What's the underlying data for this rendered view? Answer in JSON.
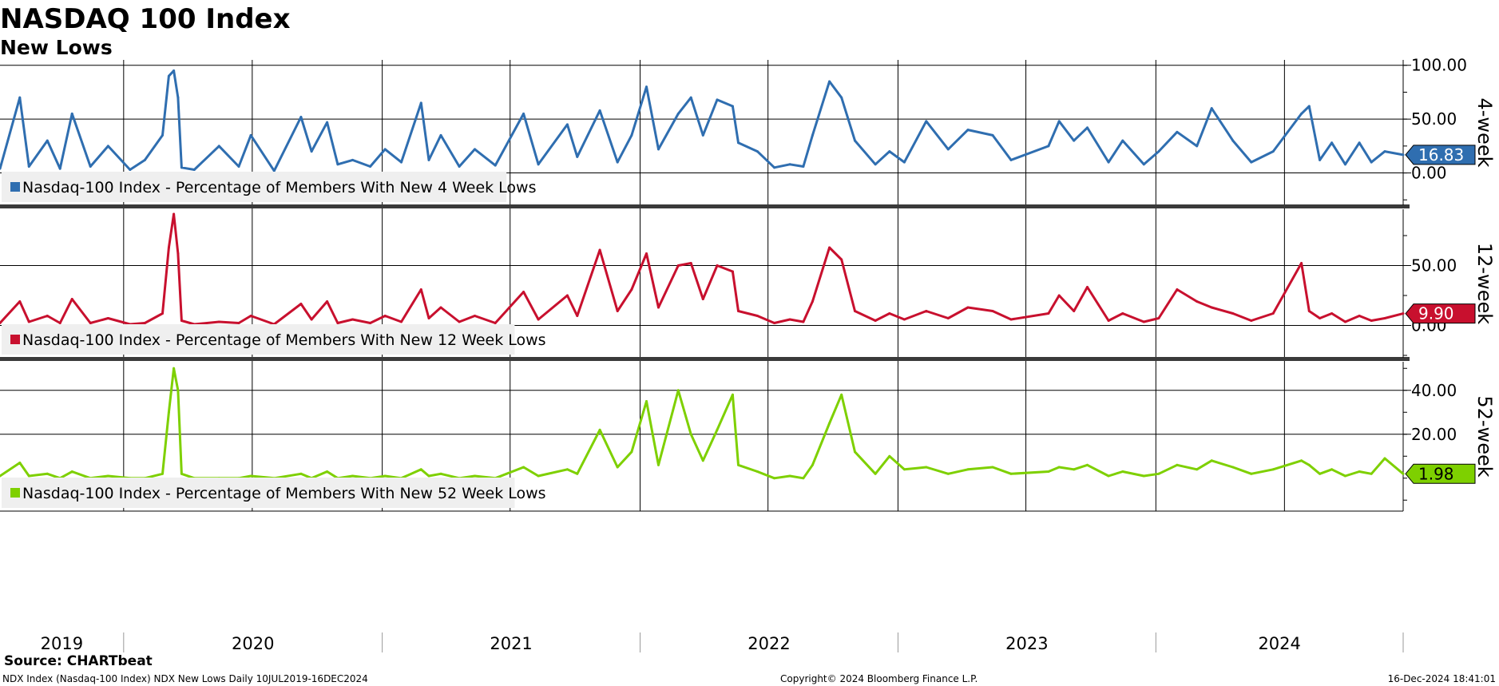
{
  "title": "NASDAQ 100 Index",
  "subtitle": "New Lows",
  "source": "Source: CHARTbeat",
  "footer": {
    "left": "NDX Index (Nasdaq-100 Index) NDX New Lows  Daily 10JUL2019-16DEC2024",
    "center": "Copyright© 2024 Bloomberg Finance L.P.",
    "right": "16-Dec-2024 18:41:01"
  },
  "colors": {
    "blue": "#2f6eb0",
    "red": "#c8102e",
    "green": "#7ed000",
    "grid": "#000000"
  },
  "chart_data": {
    "type": "line",
    "x_axis": {
      "labels": [
        "2019",
        "2020",
        "2021",
        "2022",
        "2023",
        "2024"
      ],
      "range": [
        "2019-07-10",
        "2024-12-16"
      ],
      "grid": true
    },
    "panels": [
      {
        "axis_title": "4-week",
        "y_ticks": [
          "100.00",
          "50.00",
          "0.00"
        ],
        "y_range": [
          -30,
          105
        ],
        "last_value": "16.83",
        "color": "blue",
        "legend": "Nasdaq-100 Index - Percentage of Members With New 4 Week Lows",
        "series": {
          "name": "Nasdaq-100 Index - Percentage of Members With New 4 Week Lows",
          "x": [
            "2019-07-10",
            "2019-08-07",
            "2019-08-20",
            "2019-09-15",
            "2019-10-03",
            "2019-10-20",
            "2019-11-15",
            "2019-12-10",
            "2020-01-10",
            "2020-01-31",
            "2020-02-25",
            "2020-03-05",
            "2020-03-12",
            "2020-03-18",
            "2020-03-23",
            "2020-04-10",
            "2020-05-15",
            "2020-06-12",
            "2020-06-29",
            "2020-08-01",
            "2020-09-08",
            "2020-09-23",
            "2020-10-15",
            "2020-10-30",
            "2020-11-20",
            "2020-12-15",
            "2021-01-05",
            "2021-01-28",
            "2021-02-25",
            "2021-03-08",
            "2021-03-25",
            "2021-04-20",
            "2021-05-12",
            "2021-06-10",
            "2021-07-20",
            "2021-08-10",
            "2021-09-20",
            "2021-10-04",
            "2021-11-05",
            "2021-11-30",
            "2021-12-20",
            "2022-01-10",
            "2022-01-27",
            "2022-02-24",
            "2022-03-14",
            "2022-03-31",
            "2022-04-20",
            "2022-05-12",
            "2022-05-20",
            "2022-06-16",
            "2022-07-10",
            "2022-08-01",
            "2022-08-20",
            "2022-09-02",
            "2022-09-26",
            "2022-10-13",
            "2022-11-01",
            "2022-11-30",
            "2022-12-20",
            "2023-01-10",
            "2023-02-10",
            "2023-03-13",
            "2023-04-10",
            "2023-05-15",
            "2023-06-10",
            "2023-08-02",
            "2023-08-17",
            "2023-09-07",
            "2023-09-26",
            "2023-10-26",
            "2023-11-15",
            "2023-12-15",
            "2024-01-05",
            "2024-01-31",
            "2024-02-28",
            "2024-03-20",
            "2024-04-19",
            "2024-05-15",
            "2024-06-15",
            "2024-07-25",
            "2024-08-05",
            "2024-08-20",
            "2024-09-06",
            "2024-09-25",
            "2024-10-15",
            "2024-11-01",
            "2024-11-20",
            "2024-12-16"
          ],
          "y": [
            4,
            70,
            6,
            30,
            4,
            55,
            6,
            25,
            3,
            12,
            35,
            90,
            95,
            70,
            5,
            3,
            25,
            6,
            35,
            2,
            52,
            20,
            47,
            8,
            12,
            6,
            22,
            10,
            65,
            12,
            35,
            6,
            22,
            7,
            55,
            8,
            45,
            15,
            58,
            10,
            35,
            80,
            22,
            55,
            70,
            35,
            68,
            62,
            28,
            20,
            5,
            8,
            6,
            35,
            85,
            70,
            30,
            8,
            20,
            10,
            48,
            22,
            40,
            35,
            12,
            25,
            48,
            30,
            42,
            10,
            30,
            8,
            20,
            38,
            25,
            60,
            30,
            10,
            20,
            55,
            62,
            12,
            28,
            8,
            28,
            10,
            20,
            16.83
          ]
        }
      },
      {
        "axis_title": "12-week",
        "y_ticks": [
          "50.00",
          "0.00"
        ],
        "y_range": [
          -27,
          97
        ],
        "last_value": "9.90",
        "color": "red",
        "legend": "Nasdaq-100 Index - Percentage of Members With New 12 Week Lows",
        "series": {
          "name": "Nasdaq-100 Index - Percentage of Members With New 12 Week Lows",
          "x": [
            "2019-07-10",
            "2019-08-07",
            "2019-08-20",
            "2019-09-15",
            "2019-10-03",
            "2019-10-20",
            "2019-11-15",
            "2019-12-10",
            "2020-01-10",
            "2020-01-31",
            "2020-02-25",
            "2020-03-05",
            "2020-03-12",
            "2020-03-18",
            "2020-03-23",
            "2020-04-10",
            "2020-05-15",
            "2020-06-12",
            "2020-06-29",
            "2020-08-01",
            "2020-09-08",
            "2020-09-23",
            "2020-10-15",
            "2020-10-30",
            "2020-11-20",
            "2020-12-15",
            "2021-01-05",
            "2021-01-28",
            "2021-02-25",
            "2021-03-08",
            "2021-03-25",
            "2021-04-20",
            "2021-05-12",
            "2021-06-10",
            "2021-07-20",
            "2021-08-10",
            "2021-09-20",
            "2021-10-04",
            "2021-11-05",
            "2021-11-30",
            "2021-12-20",
            "2022-01-10",
            "2022-01-27",
            "2022-02-24",
            "2022-03-14",
            "2022-03-31",
            "2022-04-20",
            "2022-05-12",
            "2022-05-20",
            "2022-06-16",
            "2022-07-10",
            "2022-08-01",
            "2022-08-20",
            "2022-09-02",
            "2022-09-26",
            "2022-10-13",
            "2022-11-01",
            "2022-11-30",
            "2022-12-20",
            "2023-01-10",
            "2023-02-10",
            "2023-03-13",
            "2023-04-10",
            "2023-05-15",
            "2023-06-10",
            "2023-08-02",
            "2023-08-17",
            "2023-09-07",
            "2023-09-26",
            "2023-10-26",
            "2023-11-15",
            "2023-12-15",
            "2024-01-05",
            "2024-01-31",
            "2024-02-28",
            "2024-03-20",
            "2024-04-19",
            "2024-05-15",
            "2024-06-15",
            "2024-07-25",
            "2024-08-05",
            "2024-08-20",
            "2024-09-06",
            "2024-09-25",
            "2024-10-15",
            "2024-11-01",
            "2024-11-20",
            "2024-12-16"
          ],
          "y": [
            2,
            20,
            3,
            8,
            2,
            22,
            2,
            6,
            1,
            2,
            10,
            65,
            93,
            60,
            4,
            1,
            3,
            2,
            8,
            1,
            18,
            5,
            20,
            2,
            5,
            2,
            8,
            3,
            30,
            6,
            15,
            3,
            8,
            2,
            28,
            5,
            25,
            8,
            63,
            12,
            30,
            60,
            15,
            50,
            52,
            22,
            50,
            45,
            12,
            8,
            2,
            5,
            3,
            20,
            65,
            55,
            12,
            4,
            10,
            5,
            12,
            6,
            15,
            12,
            5,
            10,
            25,
            12,
            32,
            4,
            10,
            3,
            6,
            30,
            20,
            15,
            10,
            4,
            10,
            52,
            12,
            6,
            10,
            3,
            8,
            4,
            6,
            9.9
          ]
        }
      },
      {
        "axis_title": "52-week",
        "y_ticks": [
          "40.00",
          "20.00"
        ],
        "y_range": [
          -15,
          53
        ],
        "last_value": "1.98",
        "color": "green",
        "legend": "Nasdaq-100 Index - Percentage of Members With New 52 Week Lows",
        "series": {
          "name": "Nasdaq-100 Index - Percentage of Members With New 52 Week Lows",
          "x": [
            "2019-07-10",
            "2019-08-07",
            "2019-08-20",
            "2019-09-15",
            "2019-10-03",
            "2019-10-20",
            "2019-11-15",
            "2019-12-10",
            "2020-01-10",
            "2020-01-31",
            "2020-02-25",
            "2020-03-05",
            "2020-03-12",
            "2020-03-18",
            "2020-03-23",
            "2020-04-10",
            "2020-05-15",
            "2020-06-12",
            "2020-06-29",
            "2020-08-01",
            "2020-09-08",
            "2020-09-23",
            "2020-10-15",
            "2020-10-30",
            "2020-11-20",
            "2020-12-15",
            "2021-01-05",
            "2021-01-28",
            "2021-02-25",
            "2021-03-08",
            "2021-03-25",
            "2021-04-20",
            "2021-05-12",
            "2021-06-10",
            "2021-07-20",
            "2021-08-10",
            "2021-09-20",
            "2021-10-04",
            "2021-11-05",
            "2021-11-30",
            "2021-12-20",
            "2022-01-10",
            "2022-01-27",
            "2022-02-24",
            "2022-03-14",
            "2022-03-31",
            "2022-04-20",
            "2022-05-12",
            "2022-05-20",
            "2022-06-16",
            "2022-07-10",
            "2022-08-01",
            "2022-08-20",
            "2022-09-02",
            "2022-09-26",
            "2022-10-13",
            "2022-11-01",
            "2022-11-30",
            "2022-12-20",
            "2023-01-10",
            "2023-02-10",
            "2023-03-13",
            "2023-04-10",
            "2023-05-15",
            "2023-06-10",
            "2023-08-02",
            "2023-08-17",
            "2023-09-07",
            "2023-09-26",
            "2023-10-26",
            "2023-11-15",
            "2023-12-15",
            "2024-01-05",
            "2024-01-31",
            "2024-02-28",
            "2024-03-20",
            "2024-04-19",
            "2024-05-15",
            "2024-06-15",
            "2024-07-25",
            "2024-08-05",
            "2024-08-20",
            "2024-09-06",
            "2024-09-25",
            "2024-10-15",
            "2024-11-01",
            "2024-11-20",
            "2024-12-16"
          ],
          "y": [
            1,
            7,
            1,
            2,
            0,
            3,
            0,
            1,
            0,
            0,
            2,
            30,
            50,
            40,
            2,
            0,
            0,
            0,
            1,
            0,
            2,
            0,
            3,
            0,
            1,
            0,
            1,
            0,
            4,
            1,
            2,
            0,
            1,
            0,
            5,
            1,
            4,
            2,
            22,
            5,
            12,
            35,
            6,
            40,
            20,
            8,
            22,
            38,
            6,
            3,
            0,
            1,
            0,
            6,
            25,
            38,
            12,
            2,
            10,
            4,
            5,
            2,
            4,
            5,
            2,
            3,
            5,
            4,
            6,
            1,
            3,
            1,
            2,
            6,
            4,
            8,
            5,
            2,
            4,
            8,
            6,
            2,
            4,
            1,
            3,
            2,
            9,
            1.98
          ]
        }
      }
    ]
  }
}
